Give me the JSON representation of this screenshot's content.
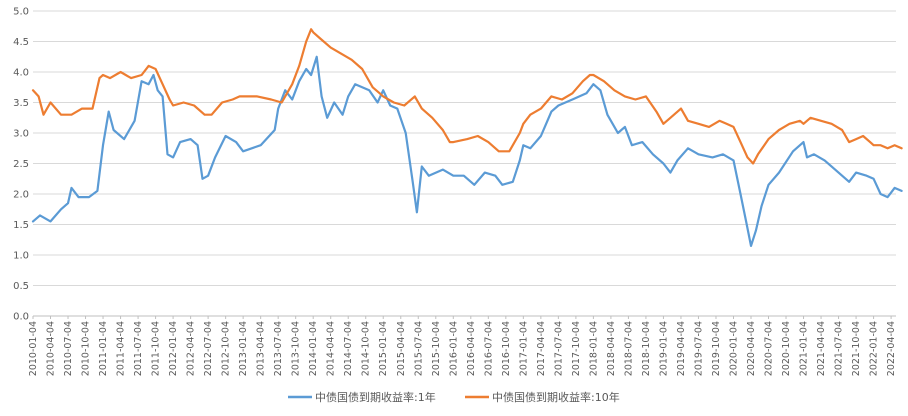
{
  "chart_data": {
    "type": "line",
    "title": "",
    "xlabel": "",
    "ylabel": "",
    "ylim": [
      0,
      5.0
    ],
    "y_ticks": [
      "0.0",
      "0.5",
      "1.0",
      "1.5",
      "2.0",
      "2.5",
      "3.0",
      "3.5",
      "4.0",
      "4.5",
      "5.0"
    ],
    "x_ticks": [
      "2010-01-04",
      "2010-04-04",
      "2010-07-04",
      "2010-10-04",
      "2011-01-04",
      "2011-04-04",
      "2011-07-04",
      "2011-10-04",
      "2012-01-04",
      "2012-04-04",
      "2012-07-04",
      "2012-10-04",
      "2013-01-04",
      "2013-04-04",
      "2013-07-04",
      "2013-10-04",
      "2014-01-04",
      "2014-04-04",
      "2014-07-04",
      "2014-10-04",
      "2015-01-04",
      "2015-04-04",
      "2015-07-04",
      "2015-10-04",
      "2016-01-04",
      "2016-04-04",
      "2016-07-04",
      "2016-10-04",
      "2017-01-04",
      "2017-04-04",
      "2017-07-04",
      "2017-10-04",
      "2018-01-04",
      "2018-04-04",
      "2018-07-04",
      "2018-10-04",
      "2019-01-04",
      "2019-04-04",
      "2019-07-04",
      "2019-10-04",
      "2020-01-04",
      "2020-04-04",
      "2020-07-04",
      "2020-10-04",
      "2021-01-04",
      "2021-04-04",
      "2021-07-04",
      "2021-10-04",
      "2022-01-04",
      "2022-04-04"
    ],
    "grid": true,
    "legend_position": "bottom",
    "series": [
      {
        "name": "中债国债到期收益率:1年",
        "color": "#5b9bd5",
        "points": [
          [
            2010.0,
            1.55
          ],
          [
            2010.1,
            1.65
          ],
          [
            2010.25,
            1.55
          ],
          [
            2010.4,
            1.75
          ],
          [
            2010.5,
            1.85
          ],
          [
            2010.55,
            2.1
          ],
          [
            2010.65,
            1.95
          ],
          [
            2010.8,
            1.95
          ],
          [
            2010.92,
            2.05
          ],
          [
            2011.0,
            2.8
          ],
          [
            2011.08,
            3.35
          ],
          [
            2011.15,
            3.05
          ],
          [
            2011.3,
            2.9
          ],
          [
            2011.45,
            3.2
          ],
          [
            2011.55,
            3.85
          ],
          [
            2011.65,
            3.8
          ],
          [
            2011.72,
            3.95
          ],
          [
            2011.78,
            3.7
          ],
          [
            2011.85,
            3.6
          ],
          [
            2011.92,
            2.65
          ],
          [
            2012.0,
            2.6
          ],
          [
            2012.1,
            2.85
          ],
          [
            2012.25,
            2.9
          ],
          [
            2012.35,
            2.8
          ],
          [
            2012.42,
            2.25
          ],
          [
            2012.5,
            2.3
          ],
          [
            2012.6,
            2.6
          ],
          [
            2012.75,
            2.95
          ],
          [
            2012.9,
            2.85
          ],
          [
            2013.0,
            2.7
          ],
          [
            2013.25,
            2.8
          ],
          [
            2013.45,
            3.05
          ],
          [
            2013.5,
            3.4
          ],
          [
            2013.6,
            3.7
          ],
          [
            2013.7,
            3.55
          ],
          [
            2013.8,
            3.85
          ],
          [
            2013.9,
            4.05
          ],
          [
            2013.97,
            3.95
          ],
          [
            2014.05,
            4.25
          ],
          [
            2014.12,
            3.6
          ],
          [
            2014.2,
            3.25
          ],
          [
            2014.3,
            3.5
          ],
          [
            2014.42,
            3.3
          ],
          [
            2014.5,
            3.6
          ],
          [
            2014.6,
            3.8
          ],
          [
            2014.8,
            3.7
          ],
          [
            2014.92,
            3.5
          ],
          [
            2015.0,
            3.7
          ],
          [
            2015.1,
            3.45
          ],
          [
            2015.2,
            3.4
          ],
          [
            2015.32,
            3.0
          ],
          [
            2015.42,
            2.2
          ],
          [
            2015.48,
            1.7
          ],
          [
            2015.55,
            2.45
          ],
          [
            2015.65,
            2.3
          ],
          [
            2015.85,
            2.4
          ],
          [
            2016.0,
            2.3
          ],
          [
            2016.15,
            2.3
          ],
          [
            2016.3,
            2.15
          ],
          [
            2016.45,
            2.35
          ],
          [
            2016.6,
            2.3
          ],
          [
            2016.7,
            2.15
          ],
          [
            2016.85,
            2.2
          ],
          [
            2016.95,
            2.55
          ],
          [
            2017.0,
            2.8
          ],
          [
            2017.1,
            2.75
          ],
          [
            2017.25,
            2.95
          ],
          [
            2017.4,
            3.35
          ],
          [
            2017.5,
            3.45
          ],
          [
            2017.7,
            3.55
          ],
          [
            2017.9,
            3.65
          ],
          [
            2018.0,
            3.8
          ],
          [
            2018.1,
            3.7
          ],
          [
            2018.2,
            3.3
          ],
          [
            2018.35,
            3.0
          ],
          [
            2018.45,
            3.1
          ],
          [
            2018.55,
            2.8
          ],
          [
            2018.7,
            2.85
          ],
          [
            2018.85,
            2.65
          ],
          [
            2019.0,
            2.5
          ],
          [
            2019.1,
            2.35
          ],
          [
            2019.2,
            2.55
          ],
          [
            2019.35,
            2.75
          ],
          [
            2019.5,
            2.65
          ],
          [
            2019.7,
            2.6
          ],
          [
            2019.85,
            2.65
          ],
          [
            2020.0,
            2.55
          ],
          [
            2020.1,
            2.0
          ],
          [
            2020.18,
            1.55
          ],
          [
            2020.25,
            1.15
          ],
          [
            2020.32,
            1.4
          ],
          [
            2020.4,
            1.8
          ],
          [
            2020.5,
            2.15
          ],
          [
            2020.65,
            2.35
          ],
          [
            2020.85,
            2.7
          ],
          [
            2021.0,
            2.85
          ],
          [
            2021.05,
            2.6
          ],
          [
            2021.15,
            2.65
          ],
          [
            2021.3,
            2.55
          ],
          [
            2021.45,
            2.4
          ],
          [
            2021.55,
            2.3
          ],
          [
            2021.65,
            2.2
          ],
          [
            2021.75,
            2.35
          ],
          [
            2021.9,
            2.3
          ],
          [
            2022.0,
            2.25
          ],
          [
            2022.1,
            2.0
          ],
          [
            2022.2,
            1.95
          ],
          [
            2022.3,
            2.1
          ],
          [
            2022.4,
            2.05
          ]
        ]
      },
      {
        "name": "中债国债到期收益率:10年",
        "color": "#ed7d31",
        "points": [
          [
            2010.0,
            3.7
          ],
          [
            2010.08,
            3.6
          ],
          [
            2010.15,
            3.3
          ],
          [
            2010.25,
            3.5
          ],
          [
            2010.4,
            3.3
          ],
          [
            2010.55,
            3.3
          ],
          [
            2010.7,
            3.4
          ],
          [
            2010.85,
            3.4
          ],
          [
            2010.95,
            3.9
          ],
          [
            2011.0,
            3.95
          ],
          [
            2011.1,
            3.9
          ],
          [
            2011.25,
            4.0
          ],
          [
            2011.4,
            3.9
          ],
          [
            2011.55,
            3.95
          ],
          [
            2011.65,
            4.1
          ],
          [
            2011.75,
            4.05
          ],
          [
            2011.85,
            3.8
          ],
          [
            2011.95,
            3.55
          ],
          [
            2012.0,
            3.45
          ],
          [
            2012.15,
            3.5
          ],
          [
            2012.3,
            3.45
          ],
          [
            2012.45,
            3.3
          ],
          [
            2012.55,
            3.3
          ],
          [
            2012.7,
            3.5
          ],
          [
            2012.85,
            3.55
          ],
          [
            2012.95,
            3.6
          ],
          [
            2013.0,
            3.6
          ],
          [
            2013.2,
            3.6
          ],
          [
            2013.4,
            3.55
          ],
          [
            2013.55,
            3.5
          ],
          [
            2013.7,
            3.8
          ],
          [
            2013.8,
            4.1
          ],
          [
            2013.9,
            4.5
          ],
          [
            2013.97,
            4.7
          ],
          [
            2014.0,
            4.65
          ],
          [
            2014.1,
            4.55
          ],
          [
            2014.25,
            4.4
          ],
          [
            2014.4,
            4.3
          ],
          [
            2014.55,
            4.2
          ],
          [
            2014.7,
            4.05
          ],
          [
            2014.85,
            3.75
          ],
          [
            2014.95,
            3.65
          ],
          [
            2015.0,
            3.6
          ],
          [
            2015.15,
            3.5
          ],
          [
            2015.3,
            3.45
          ],
          [
            2015.45,
            3.6
          ],
          [
            2015.55,
            3.4
          ],
          [
            2015.7,
            3.25
          ],
          [
            2015.85,
            3.05
          ],
          [
            2015.95,
            2.85
          ],
          [
            2016.0,
            2.85
          ],
          [
            2016.2,
            2.9
          ],
          [
            2016.35,
            2.95
          ],
          [
            2016.5,
            2.85
          ],
          [
            2016.65,
            2.7
          ],
          [
            2016.8,
            2.7
          ],
          [
            2016.95,
            3.0
          ],
          [
            2017.0,
            3.15
          ],
          [
            2017.1,
            3.3
          ],
          [
            2017.25,
            3.4
          ],
          [
            2017.4,
            3.6
          ],
          [
            2017.55,
            3.55
          ],
          [
            2017.7,
            3.65
          ],
          [
            2017.85,
            3.85
          ],
          [
            2017.95,
            3.95
          ],
          [
            2018.0,
            3.95
          ],
          [
            2018.15,
            3.85
          ],
          [
            2018.3,
            3.7
          ],
          [
            2018.45,
            3.6
          ],
          [
            2018.6,
            3.55
          ],
          [
            2018.75,
            3.6
          ],
          [
            2018.9,
            3.35
          ],
          [
            2019.0,
            3.15
          ],
          [
            2019.1,
            3.25
          ],
          [
            2019.25,
            3.4
          ],
          [
            2019.35,
            3.2
          ],
          [
            2019.5,
            3.15
          ],
          [
            2019.65,
            3.1
          ],
          [
            2019.8,
            3.2
          ],
          [
            2019.9,
            3.15
          ],
          [
            2020.0,
            3.1
          ],
          [
            2020.1,
            2.85
          ],
          [
            2020.2,
            2.6
          ],
          [
            2020.28,
            2.5
          ],
          [
            2020.35,
            2.65
          ],
          [
            2020.5,
            2.9
          ],
          [
            2020.65,
            3.05
          ],
          [
            2020.8,
            3.15
          ],
          [
            2020.95,
            3.2
          ],
          [
            2021.0,
            3.15
          ],
          [
            2021.1,
            3.25
          ],
          [
            2021.25,
            3.2
          ],
          [
            2021.4,
            3.15
          ],
          [
            2021.55,
            3.05
          ],
          [
            2021.65,
            2.85
          ],
          [
            2021.75,
            2.9
          ],
          [
            2021.85,
            2.95
          ],
          [
            2021.95,
            2.85
          ],
          [
            2022.0,
            2.8
          ],
          [
            2022.1,
            2.8
          ],
          [
            2022.2,
            2.75
          ],
          [
            2022.3,
            2.8
          ],
          [
            2022.4,
            2.75
          ]
        ]
      }
    ]
  }
}
